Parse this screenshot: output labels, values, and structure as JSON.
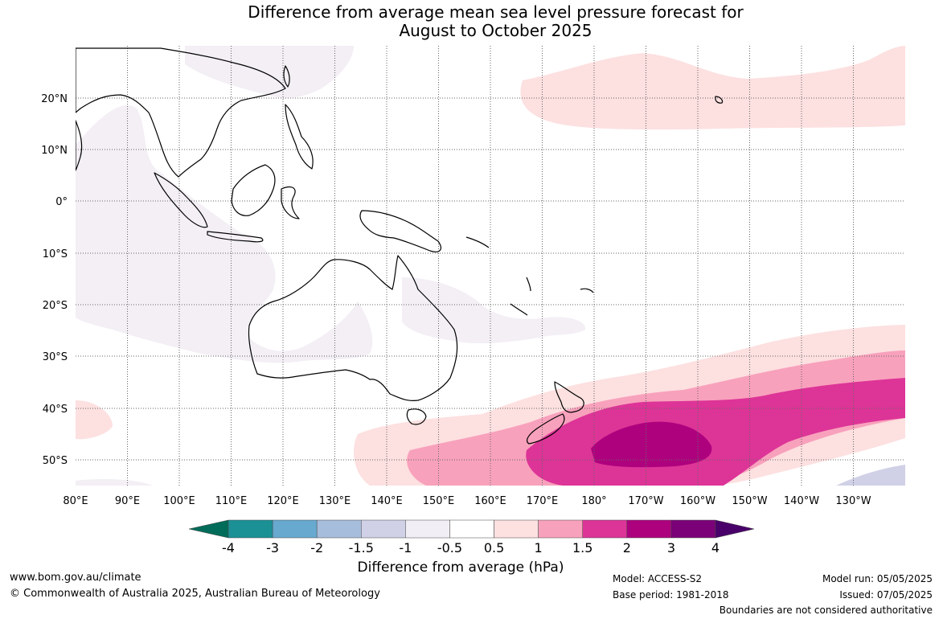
{
  "title": {
    "line1": "Difference from average mean sea level pressure forecast for",
    "line2": "August to October 2025"
  },
  "map": {
    "lat_labels": [
      "20°N",
      "10°N",
      "0°",
      "10°S",
      "20°S",
      "30°S",
      "40°S",
      "50°S"
    ],
    "lon_labels": [
      "80°E",
      "90°E",
      "100°E",
      "110°E",
      "120°E",
      "130°E",
      "140°E",
      "150°E",
      "160°E",
      "170°E",
      "180°",
      "170°W",
      "160°W",
      "150°W",
      "140°W",
      "130°W"
    ],
    "colors": {
      "land_outline": "#000000",
      "lavender_anomaly": "#f3eff5",
      "very_light_pink": "#fde0e0",
      "light_pink": "#f8a1bc",
      "medium_pink": "#dd3497",
      "deep_magenta": "#ae017e"
    }
  },
  "colorbar": {
    "ticks": [
      "-4",
      "-3",
      "-2",
      "-1.5",
      "-1",
      "-0.5",
      "0.5",
      "1",
      "1.5",
      "2",
      "3",
      "4"
    ],
    "colors": [
      "#016c59",
      "#1b9196",
      "#67a9cf",
      "#a6bddb",
      "#d0d1e6",
      "#f1eef6",
      "#ffffff",
      "#fde0e0",
      "#f8a1bc",
      "#dd3497",
      "#ae017e",
      "#7a0177",
      "#49006a"
    ],
    "label": "Difference from average (hPa)"
  },
  "footer": {
    "website": "www.bom.gov.au/climate",
    "copyright": "© Commonwealth of Australia 2025, Australian Bureau of Meteorology",
    "model": "Model: ACCESS-S2",
    "base_period": "Base period: 1981-2018",
    "model_run": "Model run: 05/05/2025",
    "issued": "Issued: 07/05/2025",
    "disclaimer": "Boundaries are not considered authoritative"
  }
}
